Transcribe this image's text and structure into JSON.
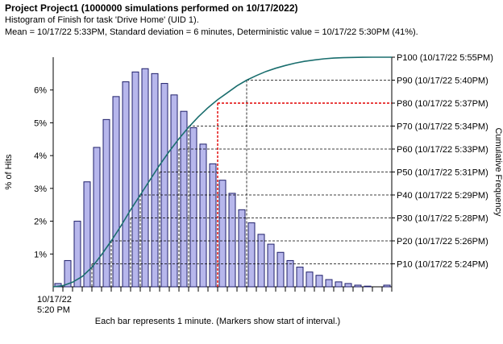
{
  "header": {
    "title": "Project Project1 (1000000 simulations performed on 10/17/2022)",
    "subtitle": "Histogram of Finish for task 'Drive Home' (UID 1).",
    "stats": "Mean = 10/17/22 5:33PM, Standard deviation = 6 minutes, Deterministic value = 10/17/22 5:30PM (41%)."
  },
  "chart_data": {
    "type": "bar",
    "ylabel": "% of Hits",
    "ylabel_right": "Cumulative Frequency",
    "xlabel": "Each bar represents 1 minute. (Markers show start of interval.)",
    "x_start_label": [
      "10/17/22",
      "5:20 PM"
    ],
    "bar_width_minutes": 1,
    "ylim": [
      0,
      7
    ],
    "yticks": [
      1,
      2,
      3,
      4,
      5,
      6
    ],
    "ytick_labels": [
      "1%",
      "2%",
      "3%",
      "4%",
      "5%",
      "6%"
    ],
    "histogram_percent": [
      0.1,
      0.8,
      2.0,
      3.2,
      4.25,
      5.1,
      5.8,
      6.25,
      6.55,
      6.65,
      6.5,
      6.2,
      5.85,
      5.35,
      4.85,
      4.35,
      3.75,
      3.25,
      2.85,
      2.35,
      1.95,
      1.6,
      1.3,
      1.05,
      0.8,
      0.6,
      0.45,
      0.35,
      0.22,
      0.15,
      0.1,
      0.05,
      0.02,
      0.0,
      0.05
    ],
    "cumulative_label": "Cumulative Frequency",
    "percentiles": [
      {
        "p": 10,
        "label": "P10 (10/17/22 5:24PM)",
        "minute": 4
      },
      {
        "p": 20,
        "label": "P20 (10/17/22 5:26PM)",
        "minute": 6
      },
      {
        "p": 30,
        "label": "P30 (10/17/22 5:28PM)",
        "minute": 8
      },
      {
        "p": 40,
        "label": "P40 (10/17/22 5:29PM)",
        "minute": 9
      },
      {
        "p": 50,
        "label": "P50 (10/17/22 5:31PM)",
        "minute": 11
      },
      {
        "p": 60,
        "label": "P60 (10/17/22 5:33PM)",
        "minute": 13
      },
      {
        "p": 70,
        "label": "P70 (10/17/22 5:34PM)",
        "minute": 14
      },
      {
        "p": 80,
        "label": "P80 (10/17/22 5:37PM)",
        "minute": 17,
        "highlight": true
      },
      {
        "p": 90,
        "label": "P90 (10/17/22 5:40PM)",
        "minute": 20
      },
      {
        "p": 100,
        "label": "P100 (10/17/22 5:55PM)",
        "minute": 35
      }
    ],
    "cumulative_curve": [
      [
        0,
        0
      ],
      [
        1,
        0.5
      ],
      [
        2,
        2
      ],
      [
        3,
        4.5
      ],
      [
        4,
        8.5
      ],
      [
        5,
        14
      ],
      [
        6,
        20
      ],
      [
        7,
        26.5
      ],
      [
        8,
        33.5
      ],
      [
        9,
        40
      ],
      [
        10,
        46.5
      ],
      [
        11,
        53
      ],
      [
        12,
        59
      ],
      [
        13,
        64.5
      ],
      [
        14,
        69.5
      ],
      [
        15,
        74
      ],
      [
        16,
        78
      ],
      [
        17,
        81.5
      ],
      [
        18,
        84.5
      ],
      [
        19,
        87.5
      ],
      [
        20,
        90
      ],
      [
        21,
        92
      ],
      [
        22,
        93.8
      ],
      [
        23,
        95.2
      ],
      [
        24,
        96.4
      ],
      [
        25,
        97.4
      ],
      [
        26,
        98.2
      ],
      [
        27,
        98.8
      ],
      [
        28,
        99.3
      ],
      [
        29,
        99.6
      ],
      [
        30,
        99.8
      ],
      [
        31,
        99.9
      ],
      [
        32,
        99.95
      ],
      [
        33,
        100
      ],
      [
        35,
        100
      ]
    ],
    "colors": {
      "bar_fill": "#b7b7ec",
      "bar_stroke": "#1f1f6a",
      "curve": "#1a6e6e",
      "highlight": "#e00000",
      "guide": "#000000"
    }
  }
}
